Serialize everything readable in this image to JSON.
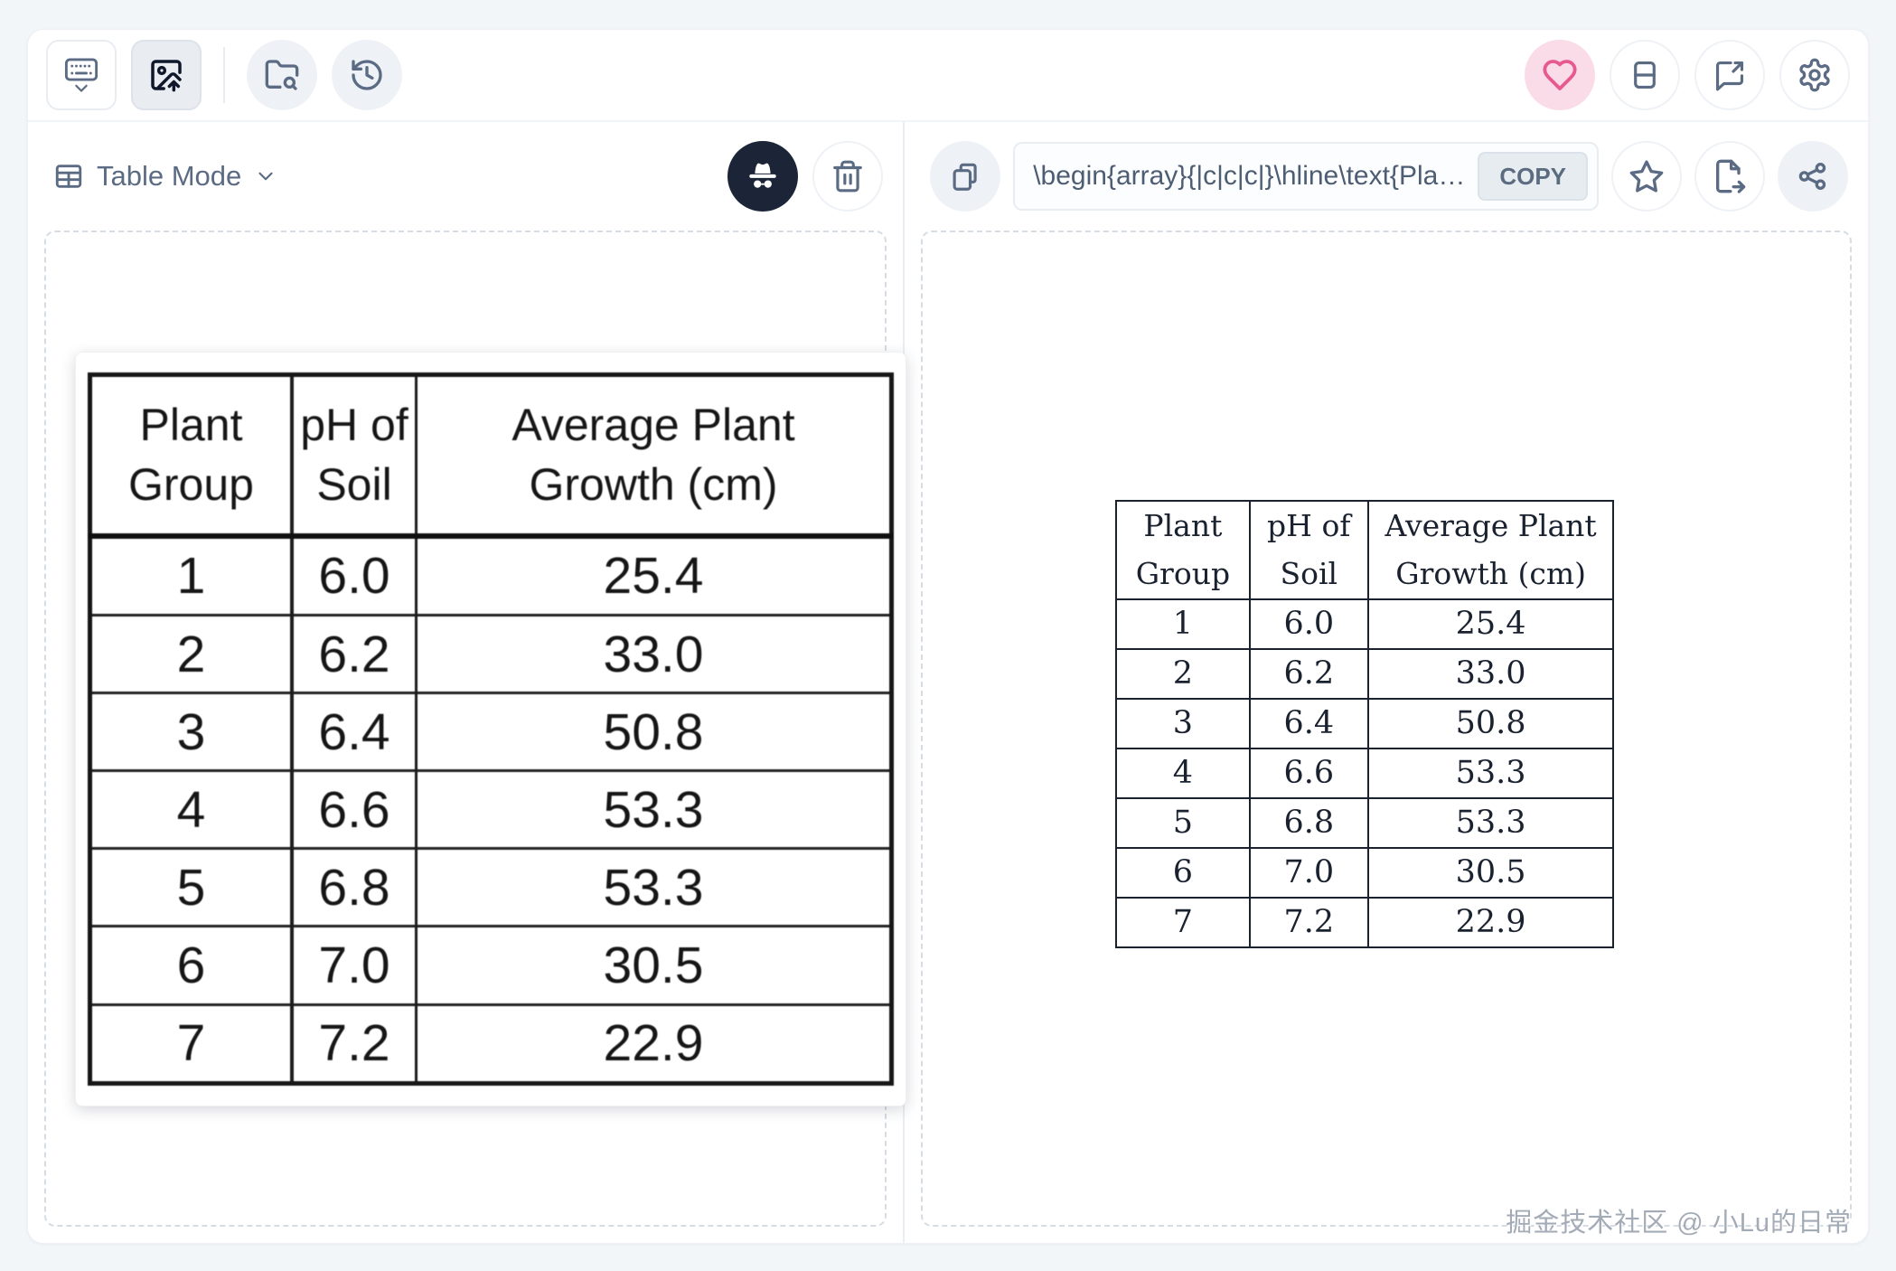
{
  "toolbar": {
    "left_buttons": [
      {
        "name": "keyboard-input-mode",
        "icon": "keyboard-icon",
        "selected": false
      },
      {
        "name": "image-upload-mode",
        "icon": "image-upload-icon",
        "selected": true
      },
      {
        "name": "folder-browse",
        "icon": "folder-search-icon",
        "selected": false
      },
      {
        "name": "history",
        "icon": "history-icon",
        "selected": false
      }
    ],
    "right_buttons": [
      {
        "name": "favorite",
        "icon": "heart-icon"
      },
      {
        "name": "split-view",
        "icon": "split-view-icon"
      },
      {
        "name": "feedback",
        "icon": "feedback-icon"
      },
      {
        "name": "settings",
        "icon": "gear-icon"
      }
    ]
  },
  "left_panel": {
    "mode_label": "Table Mode",
    "mode_icon": "table-icon",
    "mode_chevron": "chevron-down-icon",
    "action_buttons": [
      {
        "name": "incognito",
        "icon": "incognito-icon"
      },
      {
        "name": "delete",
        "icon": "trash-icon"
      }
    ],
    "source_table": {
      "headers": [
        "Plant\nGroup",
        "pH of\nSoil",
        "Average Plant\nGrowth (cm)"
      ],
      "rows": [
        [
          "1",
          "6.0",
          "25.4"
        ],
        [
          "2",
          "6.2",
          "33.0"
        ],
        [
          "3",
          "6.4",
          "50.8"
        ],
        [
          "4",
          "6.6",
          "53.3"
        ],
        [
          "5",
          "6.8",
          "53.3"
        ],
        [
          "6",
          "7.0",
          "30.5"
        ],
        [
          "7",
          "7.2",
          "22.9"
        ]
      ]
    }
  },
  "right_panel": {
    "copy_circle_icon": "copy-icon",
    "latex_code": "\\begin{array}{|c|c|c|}\\hline\\text{Pla…",
    "copy_label": "COPY",
    "action_buttons": [
      {
        "name": "star",
        "icon": "star-icon"
      },
      {
        "name": "export",
        "icon": "file-export-icon"
      },
      {
        "name": "share",
        "icon": "share-icon"
      }
    ],
    "rendered_table": {
      "headers": [
        "Plant\nGroup",
        "pH of\nSoil",
        "Average Plant\nGrowth (cm)"
      ],
      "rows": [
        [
          "1",
          "6.0",
          "25.4"
        ],
        [
          "2",
          "6.2",
          "33.0"
        ],
        [
          "3",
          "6.4",
          "50.8"
        ],
        [
          "4",
          "6.6",
          "53.3"
        ],
        [
          "5",
          "6.8",
          "53.3"
        ],
        [
          "6",
          "7.0",
          "30.5"
        ],
        [
          "7",
          "7.2",
          "22.9"
        ]
      ]
    }
  },
  "watermark": "掘金技术社区 @ 小Lu的日常",
  "colors": {
    "accent_pink": "#e75a8f",
    "pink_bg": "#fadce8",
    "incognito_bg": "#1b2537",
    "icon_slate": "#5b6b84",
    "selected_icon": "#0f172a",
    "page_bg": "#f3f6f9"
  }
}
